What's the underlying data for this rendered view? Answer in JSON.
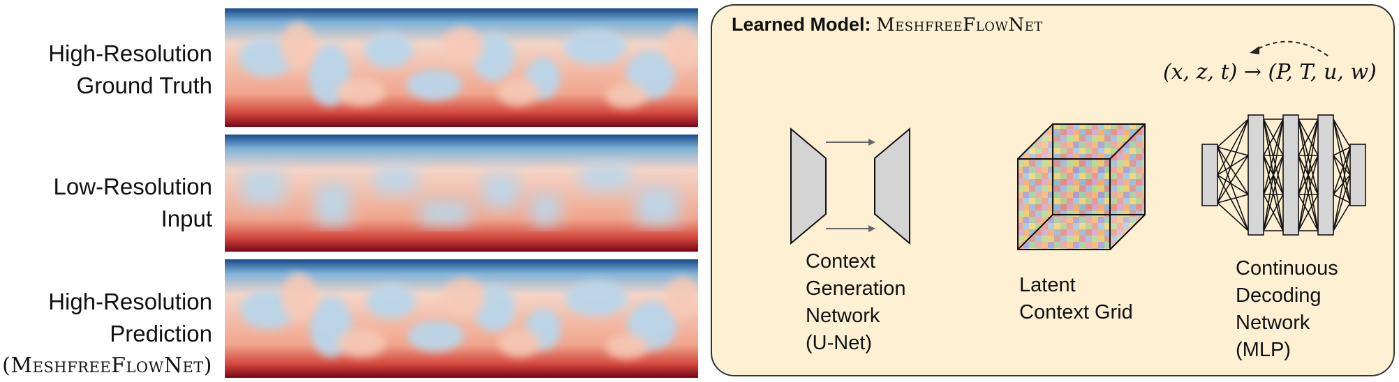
{
  "rows": [
    {
      "line1": "High-Resolution",
      "line2": "Ground Truth"
    },
    {
      "line1": "Low-Resolution",
      "line2": "Input"
    },
    {
      "line1": "High-Resolution",
      "line2": "Prediction",
      "line3": "(MeshfreeFlowNet)"
    }
  ],
  "model": {
    "title_prefix": "Learned Model:",
    "title_name": "MeshfreeFlowNet",
    "mapping": "(x, z, t) → (P, T, u, w)",
    "components": [
      {
        "line1": "Context",
        "line2": "Generation",
        "line3": "Network",
        "line4": "(U-Net)"
      },
      {
        "line1": "Latent",
        "line2": "Context Grid"
      },
      {
        "line1": "Continuous",
        "line2": "Decoding",
        "line3": "Network",
        "line4": "(MLP)"
      }
    ]
  },
  "colors": {
    "hot": "#8b0a17",
    "cold": "#1b4f8f",
    "box_fill": "#fdf0d3",
    "gray_block": "#d8d8d8"
  }
}
